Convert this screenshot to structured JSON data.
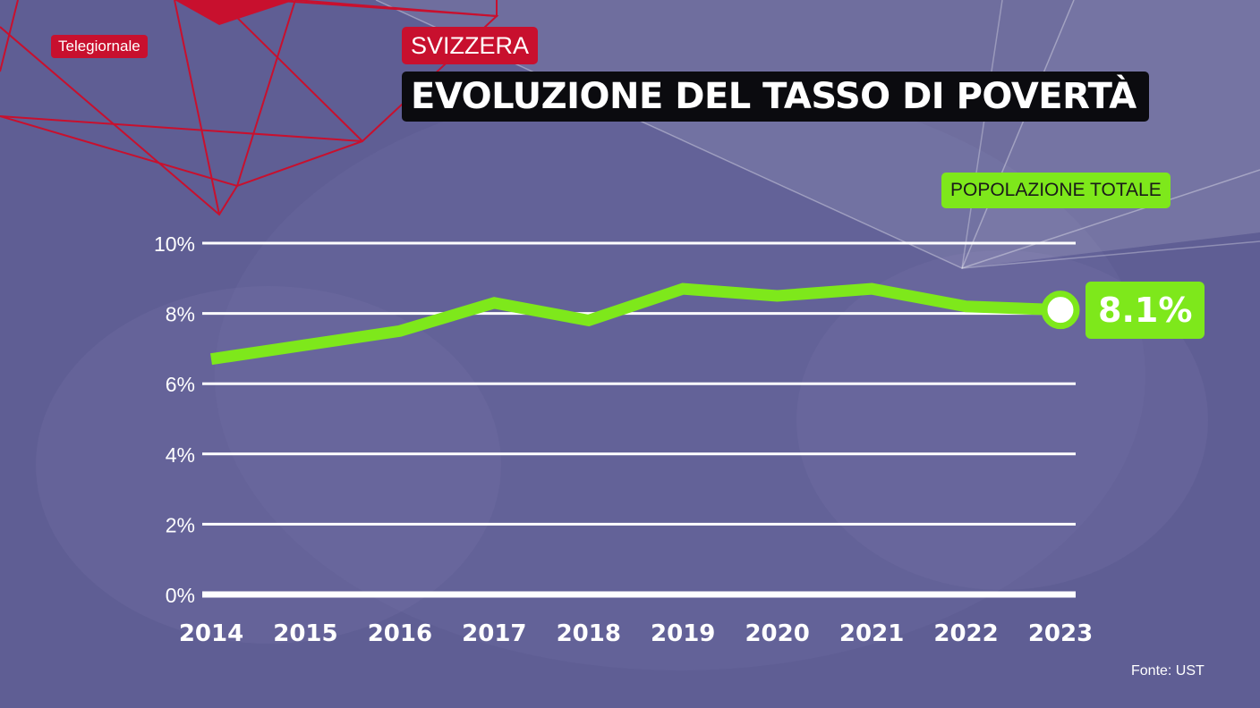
{
  "header": {
    "brand": "Telegiornale",
    "country": "SVIZZERA",
    "title": "EVOLUZIONE DEL TASSO DI POVERTÀ"
  },
  "legend": {
    "series_label": "POPOLAZIONE TOTALE",
    "last_value": "8.1%"
  },
  "footer": {
    "source": "Fonte: UST"
  },
  "colors": {
    "background": "#5f5e94",
    "accent_red": "#c8102e",
    "line_green": "#7ee81b",
    "grid": "#ffffff"
  },
  "chart_data": {
    "type": "line",
    "x": [
      2014,
      2015,
      2016,
      2017,
      2018,
      2019,
      2020,
      2021,
      2022,
      2023
    ],
    "series": [
      {
        "name": "POPOLAZIONE TOTALE",
        "values": [
          6.7,
          7.1,
          7.5,
          8.3,
          7.8,
          8.7,
          8.5,
          8.7,
          8.2,
          8.1
        ]
      }
    ],
    "yticks": [
      "0%",
      "2%",
      "4%",
      "6%",
      "8%",
      "10%"
    ],
    "ylim": [
      0,
      10
    ],
    "grid": true,
    "title": "EVOLUZIONE DEL TASSO DI POVERTÀ",
    "xlabel": "",
    "ylabel": ""
  }
}
